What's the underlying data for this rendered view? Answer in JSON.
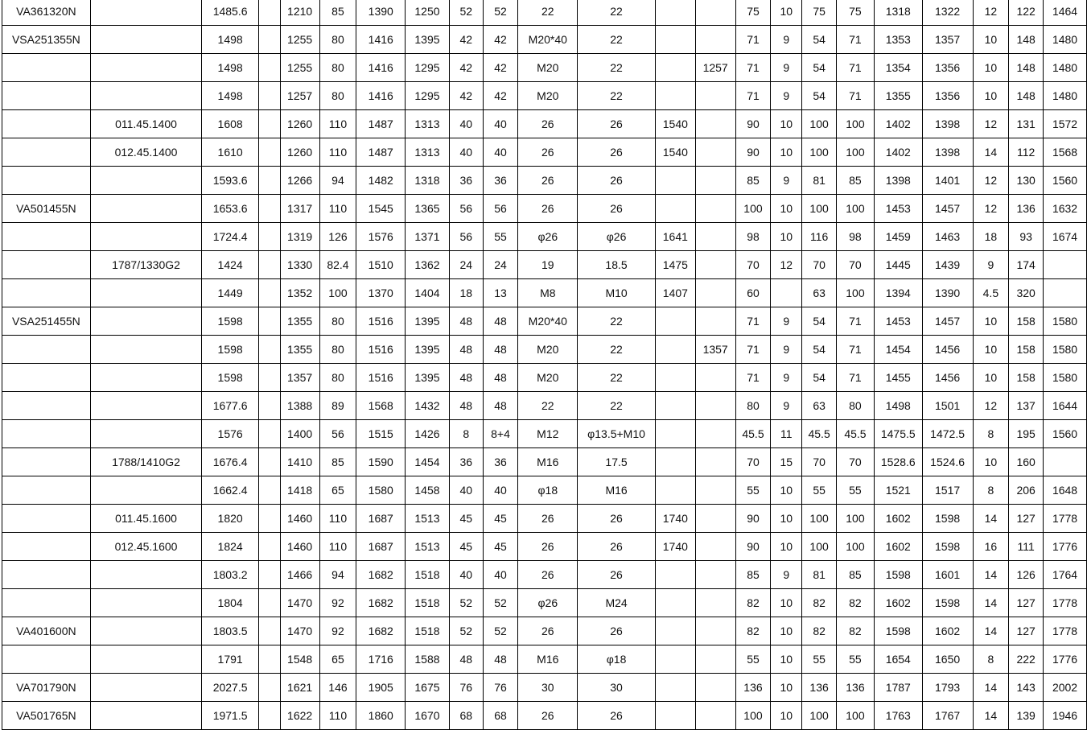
{
  "rows": [
    [
      "VA361320N",
      "",
      "1485.6",
      "",
      "1210",
      "85",
      "1390",
      "1250",
      "52",
      "52",
      "22",
      "22",
      "",
      "",
      "75",
      "10",
      "75",
      "75",
      "1318",
      "1322",
      "12",
      "122",
      "1464"
    ],
    [
      "VSA251355N",
      "",
      "1498",
      "",
      "1255",
      "80",
      "1416",
      "1395",
      "42",
      "42",
      "M20*40",
      "22",
      "",
      "",
      "71",
      "9",
      "54",
      "71",
      "1353",
      "1357",
      "10",
      "148",
      "1480"
    ],
    [
      "",
      "",
      "1498",
      "",
      "1255",
      "80",
      "1416",
      "1295",
      "42",
      "42",
      "M20",
      "22",
      "",
      "1257",
      "71",
      "9",
      "54",
      "71",
      "1354",
      "1356",
      "10",
      "148",
      "1480"
    ],
    [
      "",
      "",
      "1498",
      "",
      "1257",
      "80",
      "1416",
      "1295",
      "42",
      "42",
      "M20",
      "22",
      "",
      "",
      "71",
      "9",
      "54",
      "71",
      "1355",
      "1356",
      "10",
      "148",
      "1480"
    ],
    [
      "",
      "011.45.1400",
      "1608",
      "",
      "1260",
      "110",
      "1487",
      "1313",
      "40",
      "40",
      "26",
      "26",
      "1540",
      "",
      "90",
      "10",
      "100",
      "100",
      "1402",
      "1398",
      "12",
      "131",
      "1572"
    ],
    [
      "",
      "012.45.1400",
      "1610",
      "",
      "1260",
      "110",
      "1487",
      "1313",
      "40",
      "40",
      "26",
      "26",
      "1540",
      "",
      "90",
      "10",
      "100",
      "100",
      "1402",
      "1398",
      "14",
      "112",
      "1568"
    ],
    [
      "",
      "",
      "1593.6",
      "",
      "1266",
      "94",
      "1482",
      "1318",
      "36",
      "36",
      "26",
      "26",
      "",
      "",
      "85",
      "9",
      "81",
      "85",
      "1398",
      "1401",
      "12",
      "130",
      "1560"
    ],
    [
      "VA501455N",
      "",
      "1653.6",
      "",
      "1317",
      "110",
      "1545",
      "1365",
      "56",
      "56",
      "26",
      "26",
      "",
      "",
      "100",
      "10",
      "100",
      "100",
      "1453",
      "1457",
      "12",
      "136",
      "1632"
    ],
    [
      "",
      "",
      "1724.4",
      "",
      "1319",
      "126",
      "1576",
      "1371",
      "56",
      "55",
      "φ26",
      "φ26",
      "1641",
      "",
      "98",
      "10",
      "116",
      "98",
      "1459",
      "1463",
      "18",
      "93",
      "1674"
    ],
    [
      "",
      "1787/1330G2",
      "1424",
      "",
      "1330",
      "82.4",
      "1510",
      "1362",
      "24",
      "24",
      "19",
      "18.5",
      "1475",
      "",
      "70",
      "12",
      "70",
      "70",
      "1445",
      "1439",
      "9",
      "174",
      ""
    ],
    [
      "",
      "",
      "1449",
      "",
      "1352",
      "100",
      "1370",
      "1404",
      "18",
      "13",
      "M8",
      "M10",
      "1407",
      "",
      "60",
      "",
      "63",
      "100",
      "1394",
      "1390",
      "4.5",
      "320",
      ""
    ],
    [
      "VSA251455N",
      "",
      "1598",
      "",
      "1355",
      "80",
      "1516",
      "1395",
      "48",
      "48",
      "M20*40",
      "22",
      "",
      "",
      "71",
      "9",
      "54",
      "71",
      "1453",
      "1457",
      "10",
      "158",
      "1580"
    ],
    [
      "",
      "",
      "1598",
      "",
      "1355",
      "80",
      "1516",
      "1395",
      "48",
      "48",
      "M20",
      "22",
      "",
      "1357",
      "71",
      "9",
      "54",
      "71",
      "1454",
      "1456",
      "10",
      "158",
      "1580"
    ],
    [
      "",
      "",
      "1598",
      "",
      "1357",
      "80",
      "1516",
      "1395",
      "48",
      "48",
      "M20",
      "22",
      "",
      "",
      "71",
      "9",
      "54",
      "71",
      "1455",
      "1456",
      "10",
      "158",
      "1580"
    ],
    [
      "",
      "",
      "1677.6",
      "",
      "1388",
      "89",
      "1568",
      "1432",
      "48",
      "48",
      "22",
      "22",
      "",
      "",
      "80",
      "9",
      "63",
      "80",
      "1498",
      "1501",
      "12",
      "137",
      "1644"
    ],
    [
      "",
      "",
      "1576",
      "",
      "1400",
      "56",
      "1515",
      "1426",
      "8",
      "8+4",
      "M12",
      "φ13.5+M10",
      "",
      "",
      "45.5",
      "11",
      "45.5",
      "45.5",
      "1475.5",
      "1472.5",
      "8",
      "195",
      "1560"
    ],
    [
      "",
      "1788/1410G2",
      "1676.4",
      "",
      "1410",
      "85",
      "1590",
      "1454",
      "36",
      "36",
      "M16",
      "17.5",
      "",
      "",
      "70",
      "15",
      "70",
      "70",
      "1528.6",
      "1524.6",
      "10",
      "160",
      ""
    ],
    [
      "",
      "",
      "1662.4",
      "",
      "1418",
      "65",
      "1580",
      "1458",
      "40",
      "40",
      "φ18",
      "M16",
      "",
      "",
      "55",
      "10",
      "55",
      "55",
      "1521",
      "1517",
      "8",
      "206",
      "1648"
    ],
    [
      "",
      "011.45.1600",
      "1820",
      "",
      "1460",
      "110",
      "1687",
      "1513",
      "45",
      "45",
      "26",
      "26",
      "1740",
      "",
      "90",
      "10",
      "100",
      "100",
      "1602",
      "1598",
      "14",
      "127",
      "1778"
    ],
    [
      "",
      "012.45.1600",
      "1824",
      "",
      "1460",
      "110",
      "1687",
      "1513",
      "45",
      "45",
      "26",
      "26",
      "1740",
      "",
      "90",
      "10",
      "100",
      "100",
      "1602",
      "1598",
      "16",
      "111",
      "1776"
    ],
    [
      "",
      "",
      "1803.2",
      "",
      "1466",
      "94",
      "1682",
      "1518",
      "40",
      "40",
      "26",
      "26",
      "",
      "",
      "85",
      "9",
      "81",
      "85",
      "1598",
      "1601",
      "14",
      "126",
      "1764"
    ],
    [
      "",
      "",
      "1804",
      "",
      "1470",
      "92",
      "1682",
      "1518",
      "52",
      "52",
      "φ26",
      "M24",
      "",
      "",
      "82",
      "10",
      "82",
      "82",
      "1602",
      "1598",
      "14",
      "127",
      "1778"
    ],
    [
      "VA401600N",
      "",
      "1803.5",
      "",
      "1470",
      "92",
      "1682",
      "1518",
      "52",
      "52",
      "26",
      "26",
      "",
      "",
      "82",
      "10",
      "82",
      "82",
      "1598",
      "1602",
      "14",
      "127",
      "1778"
    ],
    [
      "",
      "",
      "1791",
      "",
      "1548",
      "65",
      "1716",
      "1588",
      "48",
      "48",
      "M16",
      "φ18",
      "",
      "",
      "55",
      "10",
      "55",
      "55",
      "1654",
      "1650",
      "8",
      "222",
      "1776"
    ],
    [
      "VA701790N",
      "",
      "2027.5",
      "",
      "1621",
      "146",
      "1905",
      "1675",
      "76",
      "76",
      "30",
      "30",
      "",
      "",
      "136",
      "10",
      "136",
      "136",
      "1787",
      "1793",
      "14",
      "143",
      "2002"
    ],
    [
      "VA501765N",
      "",
      "1971.5",
      "",
      "1622",
      "110",
      "1860",
      "1670",
      "68",
      "68",
      "26",
      "26",
      "",
      "",
      "100",
      "10",
      "100",
      "100",
      "1763",
      "1767",
      "14",
      "139",
      "1946"
    ]
  ]
}
